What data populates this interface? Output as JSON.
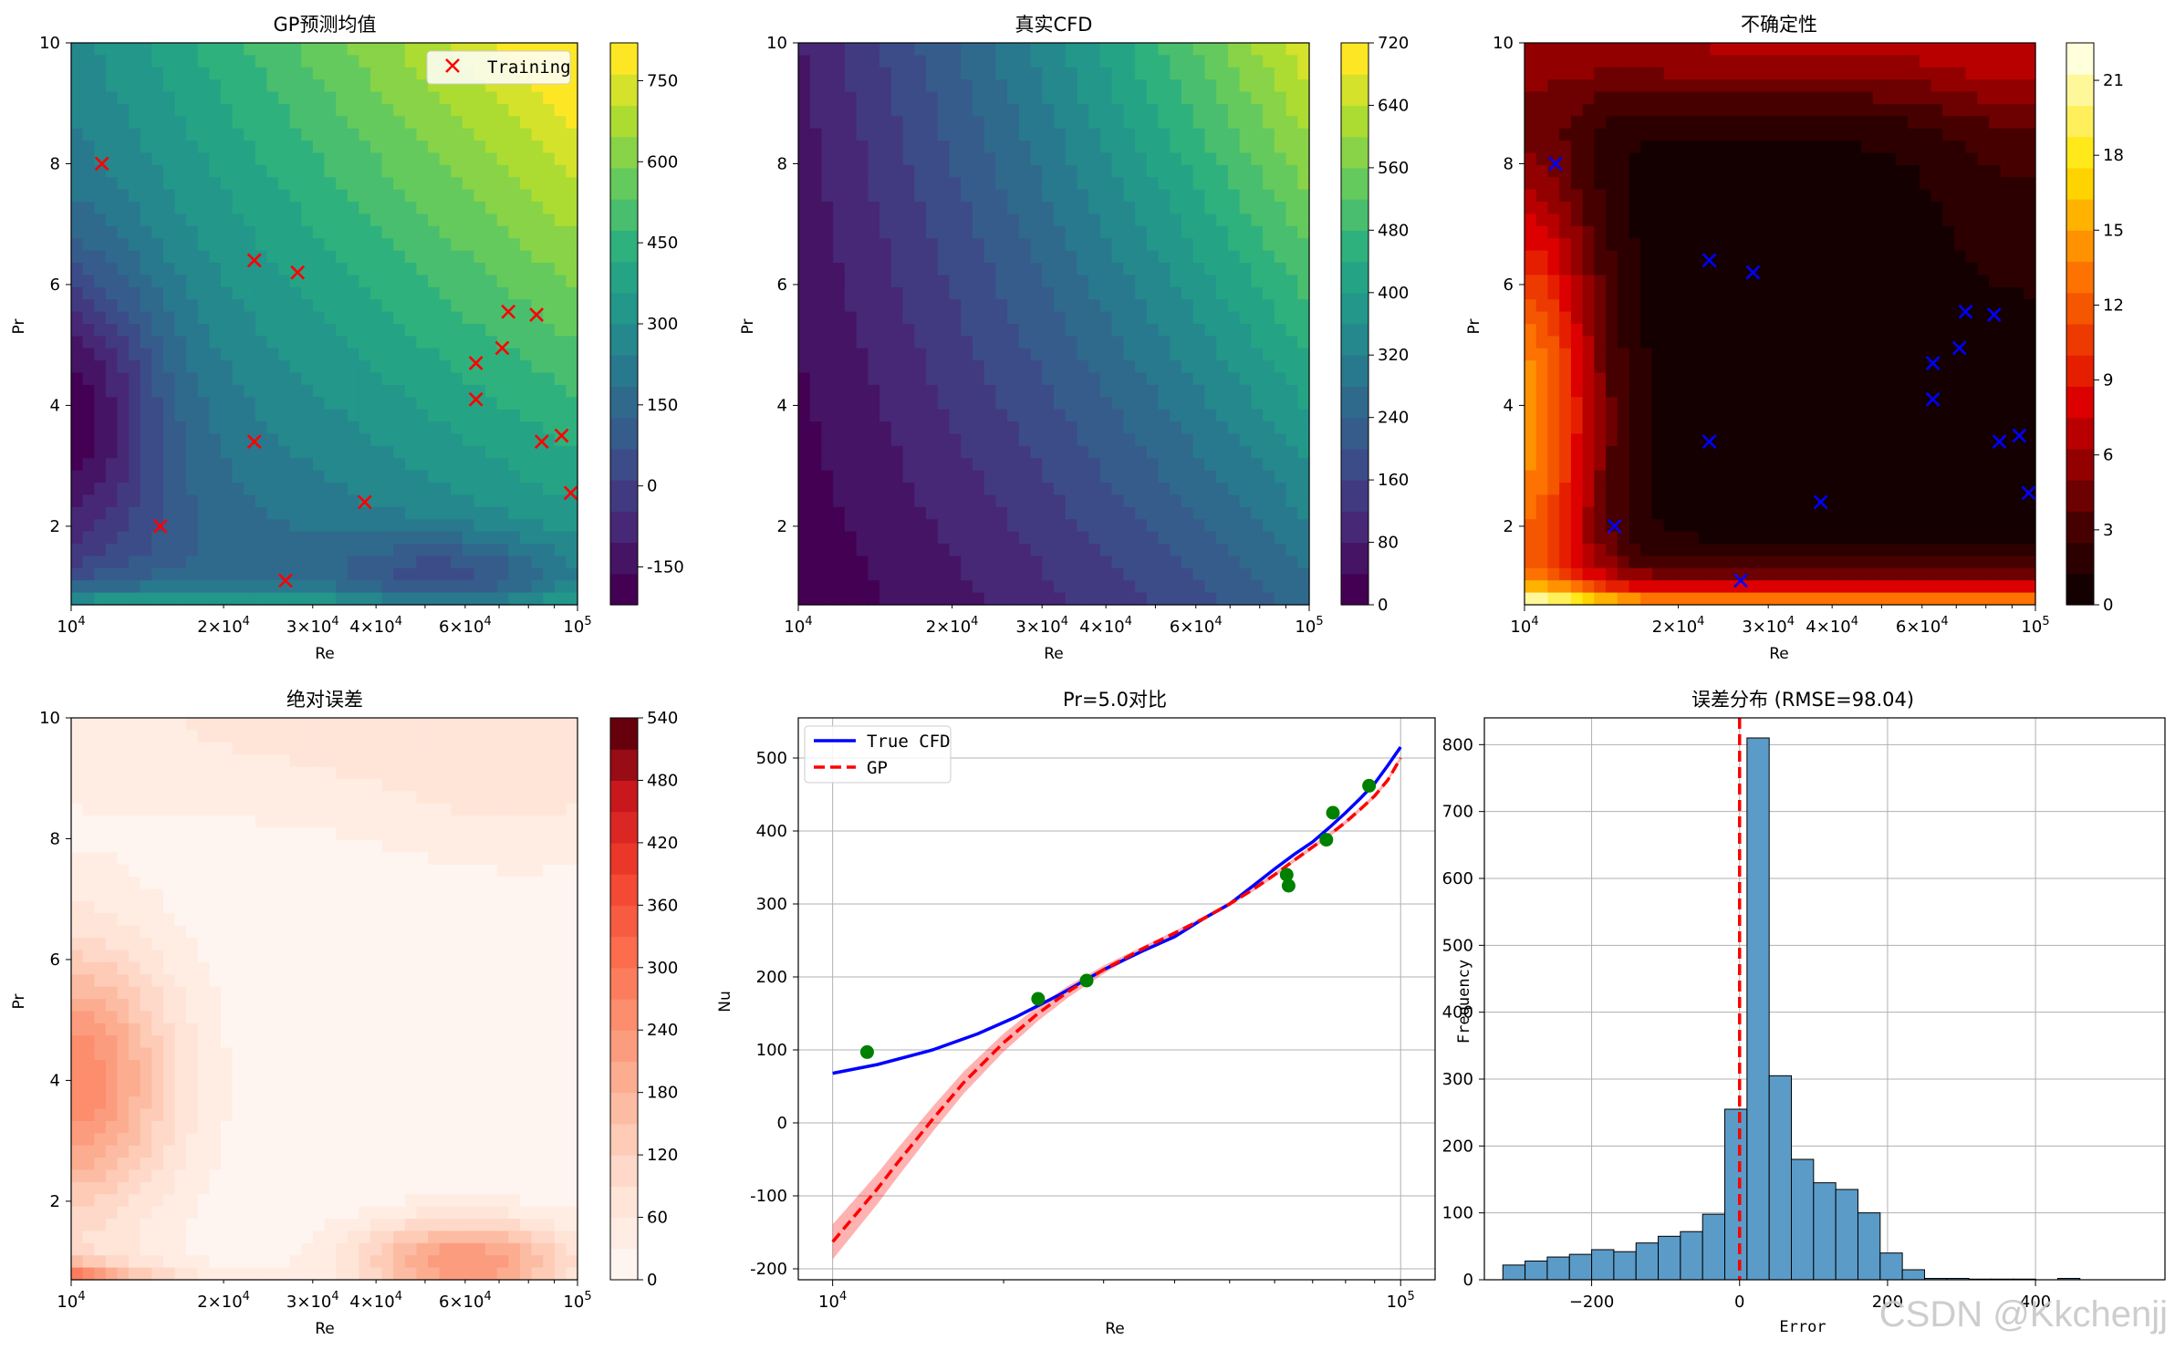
{
  "watermark": "CSDN @Kkchenjj",
  "chart_data": [
    {
      "type": "heatmap",
      "title": "GP预测均值",
      "xlabel": "Re",
      "ylabel": "Pr",
      "xscale": "log",
      "xlim": [
        10000,
        100000
      ],
      "ylim": [
        0.7,
        10
      ],
      "x_ticks": [
        "10^4",
        "2×10^4",
        "3×10^4",
        "4×10^4",
        "6×10^4",
        "10^5"
      ],
      "y_ticks": [
        2,
        4,
        6,
        8,
        10
      ],
      "colormap": "viridis",
      "colorbar": {
        "min": -220,
        "max": 820,
        "ticks": [
          -150,
          0,
          150,
          300,
          450,
          600,
          750
        ]
      },
      "legend": {
        "position": "top-right",
        "entries": [
          "Training"
        ]
      },
      "training_points": [
        [
          11500,
          8.0
        ],
        [
          15000,
          2.0
        ],
        [
          23000,
          6.4
        ],
        [
          23000,
          3.4
        ],
        [
          26500,
          1.1
        ],
        [
          28000,
          6.2
        ],
        [
          38000,
          2.4
        ],
        [
          63000,
          4.7
        ],
        [
          63000,
          4.1
        ],
        [
          71000,
          4.95
        ],
        [
          73000,
          5.55
        ],
        [
          83000,
          5.5
        ],
        [
          85000,
          3.4
        ],
        [
          93000,
          3.5
        ],
        [
          97000,
          2.55
        ]
      ]
    },
    {
      "type": "heatmap",
      "title": "真实CFD",
      "xlabel": "Re",
      "ylabel": "Pr",
      "xscale": "log",
      "xlim": [
        10000,
        100000
      ],
      "ylim": [
        0.7,
        10
      ],
      "x_ticks": [
        "10^4",
        "2×10^4",
        "3×10^4",
        "4×10^4",
        "6×10^4",
        "10^5"
      ],
      "y_ticks": [
        2,
        4,
        6,
        8,
        10
      ],
      "colormap": "viridis",
      "colorbar": {
        "min": 0,
        "max": 720,
        "ticks": [
          0,
          80,
          160,
          240,
          320,
          400,
          480,
          560,
          640,
          720
        ]
      }
    },
    {
      "type": "heatmap",
      "title": "不确定性",
      "xlabel": "Re",
      "ylabel": "Pr",
      "xscale": "log",
      "xlim": [
        10000,
        100000
      ],
      "ylim": [
        0.7,
        10
      ],
      "x_ticks": [
        "10^4",
        "2×10^4",
        "3×10^4",
        "4×10^4",
        "6×10^4",
        "10^5"
      ],
      "y_ticks": [
        2,
        4,
        6,
        8,
        10
      ],
      "colormap": "hot",
      "colorbar": {
        "min": 0,
        "max": 22.5,
        "ticks": [
          0,
          3,
          6,
          9,
          12,
          15,
          18,
          21
        ]
      },
      "training_points": [
        [
          11500,
          8.0
        ],
        [
          15000,
          2.0
        ],
        [
          23000,
          6.4
        ],
        [
          23000,
          3.4
        ],
        [
          26500,
          1.1
        ],
        [
          28000,
          6.2
        ],
        [
          38000,
          2.4
        ],
        [
          63000,
          4.7
        ],
        [
          63000,
          4.1
        ],
        [
          71000,
          4.95
        ],
        [
          73000,
          5.55
        ],
        [
          83000,
          5.5
        ],
        [
          85000,
          3.4
        ],
        [
          93000,
          3.5
        ],
        [
          97000,
          2.55
        ]
      ]
    },
    {
      "type": "heatmap",
      "title": "绝对误差",
      "xlabel": "Re",
      "ylabel": "Pr",
      "xscale": "log",
      "xlim": [
        10000,
        100000
      ],
      "ylim": [
        0.7,
        10
      ],
      "x_ticks": [
        "10^4",
        "2×10^4",
        "3×10^4",
        "4×10^4",
        "6×10^4",
        "10^5"
      ],
      "y_ticks": [
        2,
        4,
        6,
        8,
        10
      ],
      "colormap": "reds",
      "colorbar": {
        "min": 0,
        "max": 540,
        "ticks": [
          0,
          60,
          120,
          180,
          240,
          300,
          360,
          420,
          480,
          540
        ]
      }
    },
    {
      "type": "line",
      "title": "Pr=5.0对比",
      "xlabel": "Re",
      "ylabel": "Nu",
      "xscale": "log",
      "xlim": [
        8700,
        115000
      ],
      "ylim": [
        -215,
        555
      ],
      "x_ticks": [
        "10^4",
        "10^5"
      ],
      "y_ticks": [
        -200,
        -100,
        0,
        100,
        200,
        300,
        400,
        500
      ],
      "grid": true,
      "legend": {
        "position": "top-left"
      },
      "series": [
        {
          "name": "True CFD",
          "color": "#0000ff",
          "style": "solid",
          "x": [
            10000,
            12000,
            15000,
            18000,
            21000,
            25000,
            30000,
            35000,
            40000,
            45000,
            50000,
            55000,
            60000,
            65000,
            70000,
            75000,
            80000,
            85000,
            90000,
            95000,
            100000
          ],
          "y": [
            68,
            80,
            100,
            122,
            145,
            175,
            210,
            235,
            255,
            280,
            300,
            325,
            348,
            368,
            385,
            405,
            425,
            445,
            465,
            490,
            515
          ]
        },
        {
          "name": "GP",
          "color": "#ff0000",
          "style": "dashed",
          "x": [
            10000,
            11000,
            12000,
            13000,
            15000,
            17000,
            20000,
            23000,
            26000,
            30000,
            35000,
            40000,
            45000,
            50000,
            55000,
            60000,
            65000,
            70000,
            75000,
            80000,
            85000,
            90000,
            95000,
            100000
          ],
          "y": [
            -163,
            -125,
            -90,
            -55,
            5,
            55,
            110,
            150,
            180,
            210,
            238,
            260,
            280,
            300,
            320,
            340,
            360,
            378,
            395,
            412,
            430,
            448,
            470,
            500
          ]
        }
      ],
      "points": [
        [
          11500,
          97
        ],
        [
          23000,
          170
        ],
        [
          28000,
          195
        ],
        [
          63000,
          340
        ],
        [
          63500,
          325
        ],
        [
          74000,
          388
        ],
        [
          76000,
          425
        ],
        [
          88000,
          462
        ]
      ]
    },
    {
      "type": "bar",
      "title": "误差分布 (RMSE=98.04)",
      "xlabel": "Error",
      "ylabel": "Frequency",
      "xlim": [
        -345,
        575
      ],
      "ylim": [
        0,
        840
      ],
      "x_ticks": [
        -200,
        0,
        200,
        400
      ],
      "y_ticks": [
        0,
        100,
        200,
        300,
        400,
        500,
        600,
        700,
        800
      ],
      "grid": true,
      "bin_edges": [
        -320,
        -290,
        -260,
        -230,
        -200,
        -170,
        -140,
        -110,
        -80,
        -50,
        -20,
        10,
        40,
        70,
        100,
        130,
        160,
        190,
        220,
        250,
        280,
        310,
        340,
        370,
        400,
        430,
        460,
        490,
        520,
        550
      ],
      "values": [
        22,
        28,
        34,
        38,
        45,
        42,
        55,
        65,
        72,
        98,
        255,
        810,
        305,
        180,
        145,
        135,
        100,
        40,
        15,
        2,
        2,
        1,
        1,
        1,
        0,
        2,
        0,
        0,
        0
      ],
      "mean_line": 0
    }
  ]
}
